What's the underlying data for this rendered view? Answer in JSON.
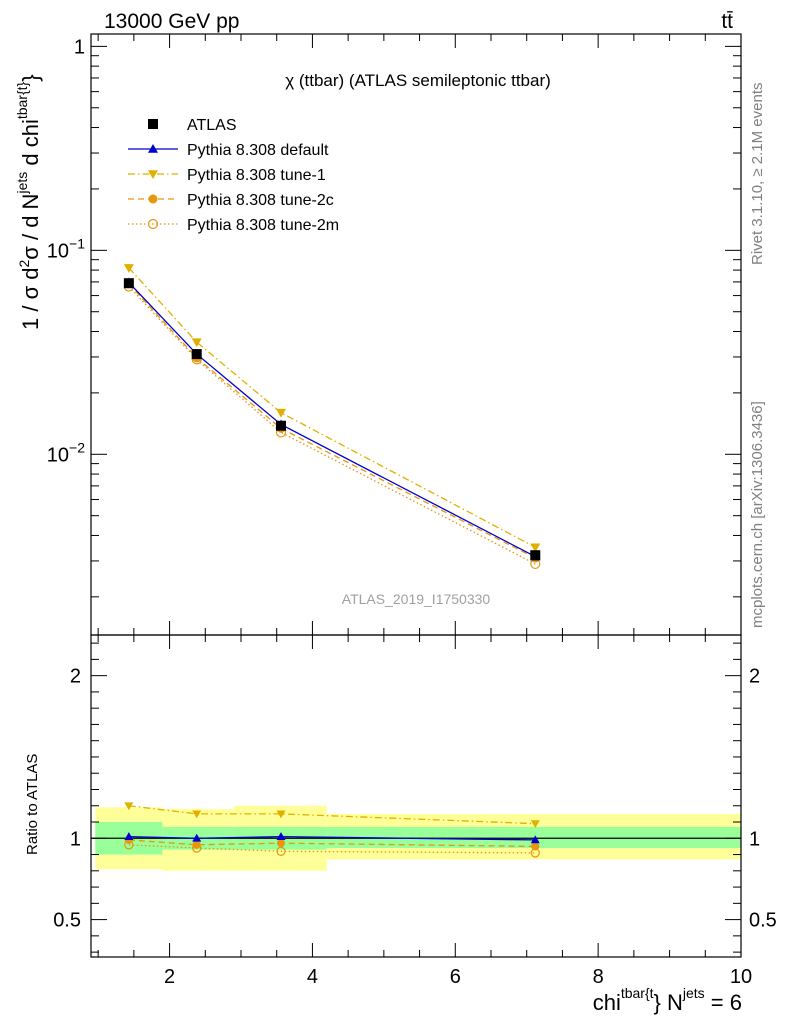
{
  "header": {
    "left": "13000 GeV pp",
    "right": "tt̄"
  },
  "side_labels": {
    "rivet": "Rivet 3.1.10, ≥ 2.1M events",
    "mcplots": "mcplots.cern.ch [arXiv:1306.3436]"
  },
  "chart_data": {
    "type": "line",
    "title": "χ (ttbar) (ATLAS semileptonic ttbar)",
    "watermark": "ATLAS_2019_I1750330",
    "ylabel": "1 / σ d²σ / d N^jets d chi^tbar{t}",
    "ylabel_parts": {
      "a": "1 / σ d",
      "a_sup": "2",
      "b": "σ / d N",
      "b_sup": "jets",
      "c": " d chi",
      "c_sup": "tbar{t}",
      "d": "}"
    },
    "xlabel_parts": {
      "a": "chi",
      "a_sup": "tbar{t",
      "b": "} N",
      "b_sup": "jets",
      "c": " = 6"
    },
    "ratio_ylabel": "Ratio to ATLAS",
    "xlim": [
      0.9,
      10.0
    ],
    "ylim": [
      0.0013,
      1.15
    ],
    "yscale": "log",
    "ratio_ylim": [
      0.27,
      2.25
    ],
    "x_ticks": [
      2,
      4,
      6,
      8,
      10
    ],
    "y_tick_labels": [
      {
        "value": 1,
        "base": "1",
        "exp": ""
      },
      {
        "value": 0.1,
        "base": "10",
        "exp": "−1"
      },
      {
        "value": 0.01,
        "base": "10",
        "exp": "−2"
      }
    ],
    "ratio_ticks": [
      0.5,
      1,
      2
    ],
    "x": [
      1.43,
      2.38,
      3.56,
      7.12
    ],
    "bins": [
      [
        0.96,
        1.9
      ],
      [
        1.9,
        2.9
      ],
      [
        2.9,
        4.2
      ],
      [
        4.2,
        10.0
      ]
    ],
    "series": [
      {
        "name": "ATLAS",
        "style": "data",
        "color": "#000000",
        "values": [
          0.069,
          0.031,
          0.0138,
          0.0032
        ],
        "band_green": [
          [
            0.9,
            1.1
          ],
          [
            0.93,
            1.07
          ],
          [
            0.93,
            1.07
          ],
          [
            0.94,
            1.07
          ]
        ],
        "band_yellow": [
          [
            0.81,
            1.19
          ],
          [
            0.8,
            1.18
          ],
          [
            0.8,
            1.2
          ],
          [
            0.87,
            1.15
          ]
        ]
      },
      {
        "name": "Pythia 8.308 default",
        "style": "solid",
        "marker": "triangle-up",
        "color": "#0000cc",
        "values": [
          0.0695,
          0.031,
          0.014,
          0.00315
        ],
        "ratio": [
          1.01,
          1.0,
          1.01,
          0.99
        ]
      },
      {
        "name": "Pythia 8.308 tune-1",
        "style": "dashdot",
        "marker": "triangle-down",
        "color": "#e0b000",
        "values": [
          0.082,
          0.0355,
          0.016,
          0.0035
        ],
        "ratio": [
          1.2,
          1.15,
          1.15,
          1.09
        ]
      },
      {
        "name": "Pythia 8.308 tune-2c",
        "style": "dashed",
        "marker": "circle-filled",
        "color": "#e8960e",
        "values": [
          0.0685,
          0.0297,
          0.0134,
          0.0031
        ],
        "ratio": [
          0.99,
          0.96,
          0.97,
          0.95
        ]
      },
      {
        "name": "Pythia 8.308 tune-2m",
        "style": "dotted",
        "marker": "circle-open",
        "color": "#e8960e",
        "values": [
          0.0665,
          0.0292,
          0.0128,
          0.0029
        ],
        "ratio": [
          0.96,
          0.94,
          0.92,
          0.91
        ]
      }
    ]
  }
}
